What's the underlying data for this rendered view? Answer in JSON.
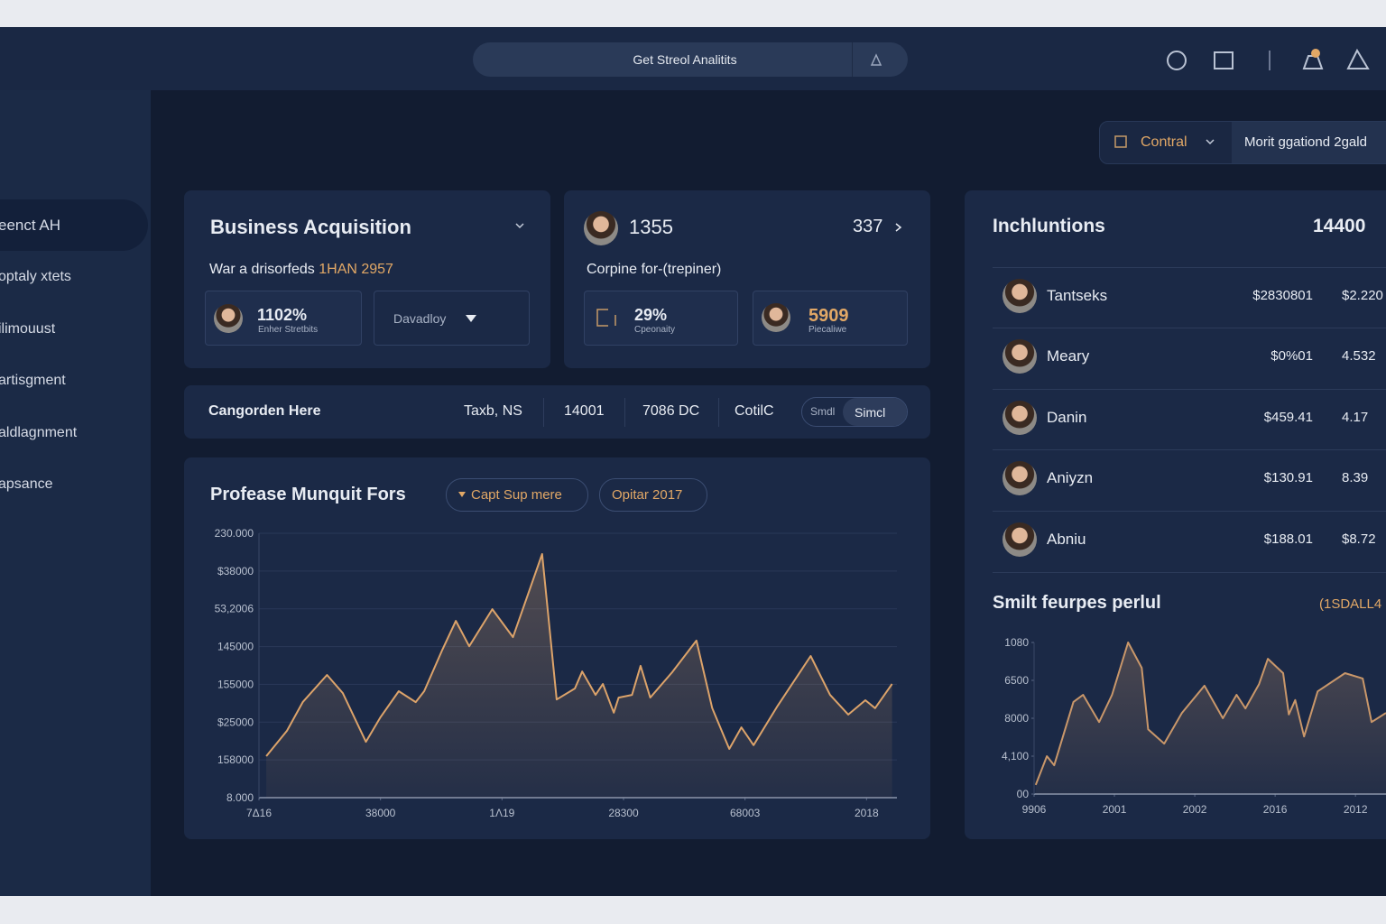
{
  "search": {
    "placeholder": "Get Streol Analitits"
  },
  "sidebar": {
    "items": [
      "eenct AH",
      "optaly xtets",
      "ilimouust",
      "artisgment",
      "aldlagnment",
      "apsance"
    ]
  },
  "filters": {
    "dropdown": "Contral",
    "range": "Morit ggationd 2gald"
  },
  "acquisition_card": {
    "title": "Business Acquisition",
    "subtitle": "War a drisorfeds",
    "highlight": "1HAN 2957",
    "stat": {
      "value": "1102%",
      "label": "Enher Stretbits"
    },
    "dropdown": "Davadloy"
  },
  "summary_card": {
    "title": "1355",
    "link": "337",
    "subtitle": "Corpine for-(trepiner)",
    "stats": [
      {
        "value": "29%",
        "label": "Cpeonaity"
      },
      {
        "value": "5909",
        "label": "Piecaliwe"
      }
    ]
  },
  "filter_bar": {
    "title": "Cangorden Here",
    "fields": [
      "Taxb, NS",
      "14001",
      "7086 DC",
      "CotilC"
    ],
    "toggle": [
      "Smdl",
      "Simcl"
    ]
  },
  "main_chart": {
    "type": "area",
    "title": "Profease Munquit Fors",
    "chips": [
      "Capt Sup mere",
      "Opitar 2017"
    ],
    "color": "#dca36a",
    "grid": true,
    "xlim": [
      0,
      5.25
    ],
    "ylim": [
      0,
      7
    ],
    "xticks": [
      {
        "value": 0,
        "label": "7Δ16"
      },
      {
        "value": 1,
        "label": "38000"
      },
      {
        "value": 2,
        "label": "1Λ19"
      },
      {
        "value": 3,
        "label": "28300"
      },
      {
        "value": 4,
        "label": "68003"
      },
      {
        "value": 5,
        "label": "2018"
      }
    ],
    "yticks": [
      {
        "value": 0,
        "label": "8.000"
      },
      {
        "value": 1,
        "label": "158000"
      },
      {
        "value": 2,
        "label": "$25000"
      },
      {
        "value": 3,
        "label": "155000"
      },
      {
        "value": 4,
        "label": "145000"
      },
      {
        "value": 5,
        "label": "53,2006"
      },
      {
        "value": 6,
        "label": "$38000"
      },
      {
        "value": 7,
        "label": "230.000"
      }
    ],
    "x": [
      0.06,
      0.23,
      0.36,
      0.56,
      0.69,
      0.88,
      1.0,
      1.15,
      1.29,
      1.36,
      1.51,
      1.62,
      1.73,
      1.92,
      2.09,
      2.33,
      2.45,
      2.6,
      2.66,
      2.77,
      2.83,
      2.92,
      2.96,
      3.07,
      3.14,
      3.22,
      3.4,
      3.6,
      3.73,
      3.87,
      3.97,
      4.07,
      4.27,
      4.54,
      4.7,
      4.85,
      4.99,
      5.07,
      5.21
    ],
    "values": [
      1.1,
      1.77,
      2.53,
      3.25,
      2.77,
      1.48,
      2.13,
      2.82,
      2.53,
      2.82,
      3.92,
      4.68,
      4.01,
      4.99,
      4.25,
      6.45,
      2.6,
      2.89,
      3.34,
      2.72,
      3.01,
      2.25,
      2.65,
      2.72,
      3.49,
      2.65,
      3.32,
      4.16,
      2.37,
      1.29,
      1.86,
      1.39,
      2.44,
      3.75,
      2.72,
      2.2,
      2.58,
      2.37,
      3.01
    ]
  },
  "institutions": {
    "title": "Inchluntions",
    "total": "14400",
    "rows": [
      {
        "name": "Tantseks",
        "amount": "$2830801",
        "change": "$2.220"
      },
      {
        "name": "Meary",
        "amount": "$0%01",
        "change": "4.532"
      },
      {
        "name": "Danin",
        "amount": "$459.41",
        "change": "4.17"
      },
      {
        "name": "Aniyzn",
        "amount": "$130.91",
        "change": "8.39"
      },
      {
        "name": "Abniu",
        "amount": "$188.01",
        "change": "$8.72"
      }
    ]
  },
  "small_chart": {
    "type": "area",
    "title": "Smilt feurpes perlul",
    "badge": "(1SDALL4",
    "color": "#c9976a",
    "grid": false,
    "xlim": [
      0,
      4.38
    ],
    "ylim": [
      0,
      4
    ],
    "xticks": [
      {
        "value": 0,
        "label": "9906"
      },
      {
        "value": 1,
        "label": "2001"
      },
      {
        "value": 2,
        "label": "2002"
      },
      {
        "value": 3,
        "label": "2016"
      },
      {
        "value": 4,
        "label": "2012"
      }
    ],
    "yticks": [
      {
        "value": 0,
        "label": "00"
      },
      {
        "value": 1,
        "label": "4,100"
      },
      {
        "value": 2,
        "label": "8000"
      },
      {
        "value": 3,
        "label": "6500"
      },
      {
        "value": 4,
        "label": "1080"
      }
    ],
    "x": [
      0.02,
      0.16,
      0.25,
      0.49,
      0.61,
      0.81,
      0.97,
      1.17,
      1.34,
      1.42,
      1.62,
      1.84,
      2.12,
      2.35,
      2.52,
      2.63,
      2.8,
      2.91,
      3.1,
      3.17,
      3.25,
      3.36,
      3.53,
      3.87,
      4.09,
      4.2,
      4.38
    ],
    "values": [
      0.24,
      1.0,
      0.76,
      2.43,
      2.62,
      1.9,
      2.62,
      4.0,
      3.33,
      1.71,
      1.33,
      2.14,
      2.86,
      2.0,
      2.62,
      2.26,
      2.9,
      3.57,
      3.19,
      2.1,
      2.48,
      1.52,
      2.71,
      3.19,
      3.05,
      1.9,
      2.14
    ]
  }
}
